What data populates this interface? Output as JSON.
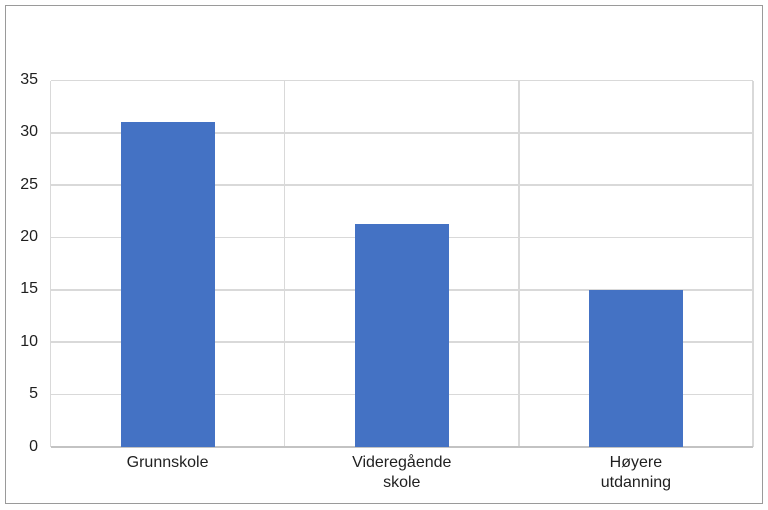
{
  "chart_data": {
    "type": "bar",
    "title": "",
    "xlabel": "",
    "ylabel": "",
    "categories": [
      "Grunnskole",
      "Videregående skole",
      "Høyere utdanning"
    ],
    "category_label_lines": [
      [
        "Grunnskole"
      ],
      [
        "Videregående",
        "skole"
      ],
      [
        "Høyere",
        "utdanning"
      ]
    ],
    "values": [
      31,
      21.3,
      15
    ],
    "ylim": [
      0,
      35
    ],
    "yticks": [
      0,
      5,
      10,
      15,
      20,
      25,
      30,
      35
    ],
    "grid": true,
    "legend": false,
    "colors": {
      "bar": "#4472C4",
      "gridline": "#D9D9D9",
      "axis_line": "#C3C3C3",
      "text": "#1F1F1F",
      "frame_border": "#9A9A9A",
      "background": "#FFFFFF"
    }
  }
}
